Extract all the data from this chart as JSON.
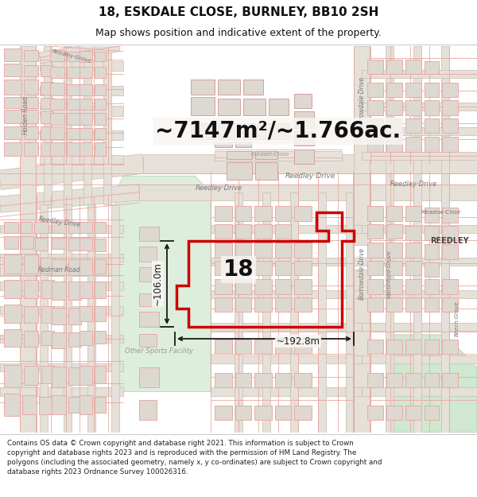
{
  "title": "18, ESKDALE CLOSE, BURNLEY, BB10 2SH",
  "subtitle": "Map shows position and indicative extent of the property.",
  "area_text": "~7147m²/~1.766ac.",
  "dim_horizontal": "~192.8m",
  "dim_vertical": "~106.0m",
  "label_18": "18",
  "boundary_color": "#cc0000",
  "dim_color": "#1a1a1a",
  "footer_text": "Contains OS data © Crown copyright and database right 2021. This information is subject to Crown copyright and database rights 2023 and is reproduced with the permission of HM Land Registry. The polygons (including the associated geometry, namely x, y co-ordinates) are subject to Crown copyright and database rights 2023 Ordnance Survey 100026316.",
  "title_fontsize": 11,
  "subtitle_fontsize": 9,
  "area_fontsize": 20,
  "dim_fontsize": 8.5,
  "label_fontsize": 20,
  "footer_fontsize": 6.3,
  "footer_bg": "#ffffff",
  "header_bg": "#ffffff",
  "map_bg": "#f8f5f2",
  "road_fill": "#ede8e2",
  "building_fill": "#ddd8d0",
  "building_outline": "#c8b8b0",
  "road_line": "#e8b8b0",
  "green_fill": "#ddeedd",
  "green_fill2": "#c8ddc8",
  "street_label_color": "#777777",
  "street_label_bold_color": "#444444"
}
